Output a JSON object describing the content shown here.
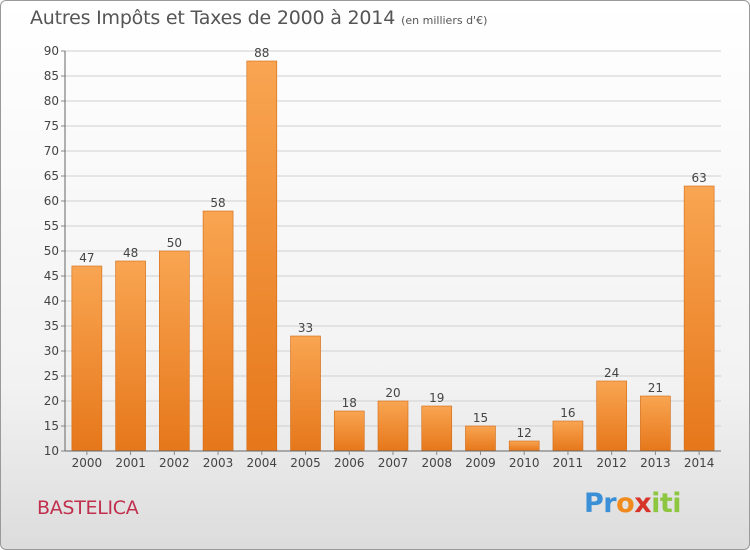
{
  "title": "Autres Impôts et Taxes de 2000 à 2014",
  "unit": "(en milliers d'€)",
  "commune": "BASTELICA",
  "logo": {
    "letters": [
      "P",
      "r",
      "o",
      "x",
      "i",
      "t",
      "i"
    ],
    "colors": [
      "#3b8fd6",
      "#3b8fd6",
      "#f08a1c",
      "#d8352a",
      "#8dc63f",
      "#8dc63f",
      "#8dc63f"
    ]
  },
  "colors": {
    "bar_light": "#f9a552",
    "bar_dark": "#e6771a",
    "grid": "#d0d0d0",
    "text": "#444444"
  },
  "chart_data": {
    "type": "bar",
    "categories": [
      "2000",
      "2001",
      "2002",
      "2003",
      "2004",
      "2005",
      "2006",
      "2007",
      "2008",
      "2009",
      "2010",
      "2011",
      "2012",
      "2013",
      "2014"
    ],
    "values": [
      47,
      48,
      50,
      58,
      88,
      33,
      18,
      20,
      19,
      15,
      12,
      16,
      24,
      21,
      63
    ],
    "ylim": [
      10,
      90
    ],
    "yticks": [
      10,
      15,
      20,
      25,
      30,
      35,
      40,
      45,
      50,
      55,
      60,
      65,
      70,
      75,
      80,
      85,
      90
    ],
    "grid": true,
    "data_labels": true
  }
}
